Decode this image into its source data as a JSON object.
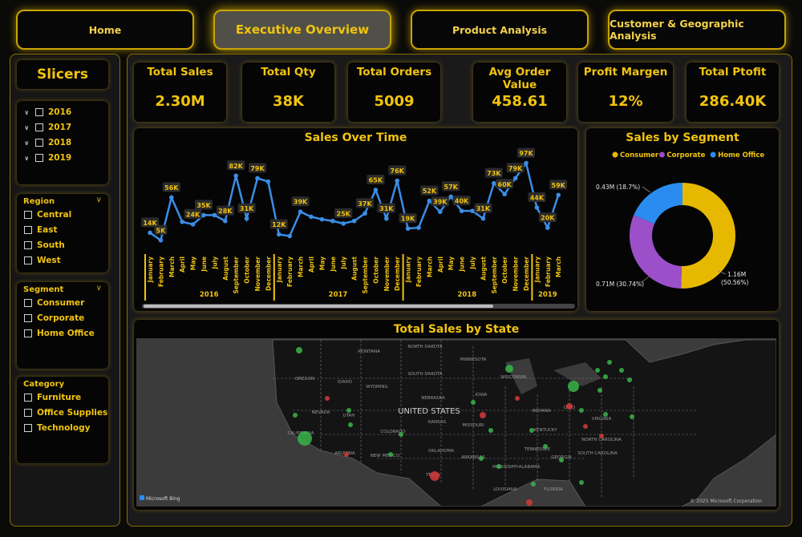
{
  "nav": {
    "home": "Home",
    "executive": "Executive Overview",
    "product": "Product Analysis",
    "customer": "Customer & Geographic Analysis"
  },
  "slicers": {
    "title": "Slicers",
    "years": [
      "2016",
      "2017",
      "2018",
      "2019"
    ],
    "region": {
      "label": "Region",
      "options": [
        "Central",
        "East",
        "South",
        "West"
      ]
    },
    "segment": {
      "label": "Segment",
      "options": [
        "Consumer",
        "Corporate",
        "Home Office"
      ]
    },
    "category": {
      "label": "Category",
      "options": [
        "Furniture",
        "Office Supplies",
        "Technology"
      ]
    }
  },
  "kpis": [
    {
      "label": "Total Sales",
      "value": "2.30M"
    },
    {
      "label": "Total Qty",
      "value": "38K"
    },
    {
      "label": "Total Orders",
      "value": "5009"
    },
    {
      "label": "Avg Order Value",
      "value": "458.61"
    },
    {
      "label": "Profit Margen",
      "value": "12%"
    },
    {
      "label": "Total Ptofit",
      "value": "286.40K"
    }
  ],
  "sales_over_time": {
    "title": "Sales Over Time",
    "chart_data": {
      "type": "line",
      "months": [
        "January",
        "February",
        "March",
        "April",
        "May",
        "June",
        "July",
        "August",
        "September",
        "October",
        "November",
        "December",
        "January",
        "February",
        "March",
        "April",
        "May",
        "June",
        "July",
        "August",
        "September",
        "October",
        "November",
        "December",
        "January",
        "February",
        "March",
        "April",
        "May",
        "June",
        "July",
        "August",
        "September",
        "October",
        "November",
        "December",
        "January",
        "February",
        "March"
      ],
      "years": [
        {
          "label": "2016",
          "start": 0,
          "end": 12
        },
        {
          "label": "2017",
          "start": 12,
          "end": 24
        },
        {
          "label": "2018",
          "start": 24,
          "end": 36
        },
        {
          "label": "2019",
          "start": 36,
          "end": 39
        }
      ],
      "values_k": [
        14,
        5,
        56,
        27,
        24,
        35,
        35,
        28,
        82,
        31,
        79,
        75,
        12,
        10,
        39,
        33,
        30,
        28,
        25,
        28,
        37,
        65,
        31,
        76,
        19,
        20,
        52,
        39,
        57,
        40,
        40,
        31,
        73,
        60,
        79,
        97,
        44,
        20,
        59
      ],
      "data_labels": {
        "0": "14K",
        "1": "5K",
        "2": "56K",
        "4": "24K",
        "5": "35K",
        "7": "28K",
        "8": "82K",
        "9": "31K",
        "10": "79K",
        "12": "12K",
        "14": "39K",
        "18": "25K",
        "20": "37K",
        "21": "65K",
        "22": "31K",
        "23": "76K",
        "24": "19K",
        "26": "52K",
        "27": "39K",
        "28": "57K",
        "29": "40K",
        "31": "31K",
        "32": "73K",
        "33": "60K",
        "34": "79K",
        "35": "97K",
        "36": "44K",
        "37": "20K",
        "38": "59K"
      },
      "ylim": [
        0,
        110
      ],
      "line_color": "#3a8ee6"
    }
  },
  "sales_by_segment": {
    "title": "Sales by Segment",
    "chart_data": {
      "type": "pie",
      "donut": true,
      "slices": [
        {
          "name": "Consumer",
          "value": 1.16,
          "label": "1.16M",
          "pct": "(50.56%)",
          "color": "#e6b800"
        },
        {
          "name": "Corporate",
          "value": 0.71,
          "label": "0.71M (30.74%)",
          "color": "#9b4fc9"
        },
        {
          "name": "Home Office",
          "value": 0.43,
          "label": "0.43M (18.7%)",
          "color": "#2a8cf0"
        }
      ]
    }
  },
  "map": {
    "title": "Total Sales by State",
    "country_label": "UNITED STATES",
    "state_labels": [
      "MONTANA",
      "NORTH DAKOTA",
      "SOUTH DAKOTA",
      "OREGON",
      "IDAHO",
      "WYOMING",
      "NEVADA",
      "UTAH",
      "COLORADO",
      "KANSAS",
      "NEBRASKA",
      "OKLAHOMA",
      "NEW MEXICO",
      "ARIZONA",
      "TEXAS",
      "MISSOURI",
      "ARKANSAS",
      "CALIFORNIA",
      "IOWA",
      "MINNESOTA",
      "KENTUCKY",
      "TENNESSEE",
      "LOUISIANA",
      "MISSISSIPPI",
      "ALABAMA",
      "GEORGIA",
      "FLORIDA",
      "WISCONSIN",
      "INDIANA",
      "OHIO",
      "VIRGINIA",
      "NORTH CAROLINA",
      "SOUTH CAROLINA"
    ],
    "logo": "Microsoft Bing",
    "copyright": "© 2025 Microsoft Corporation",
    "bubble_colors": {
      "profit": "#3ab54a",
      "loss": "#d63a3a"
    }
  }
}
